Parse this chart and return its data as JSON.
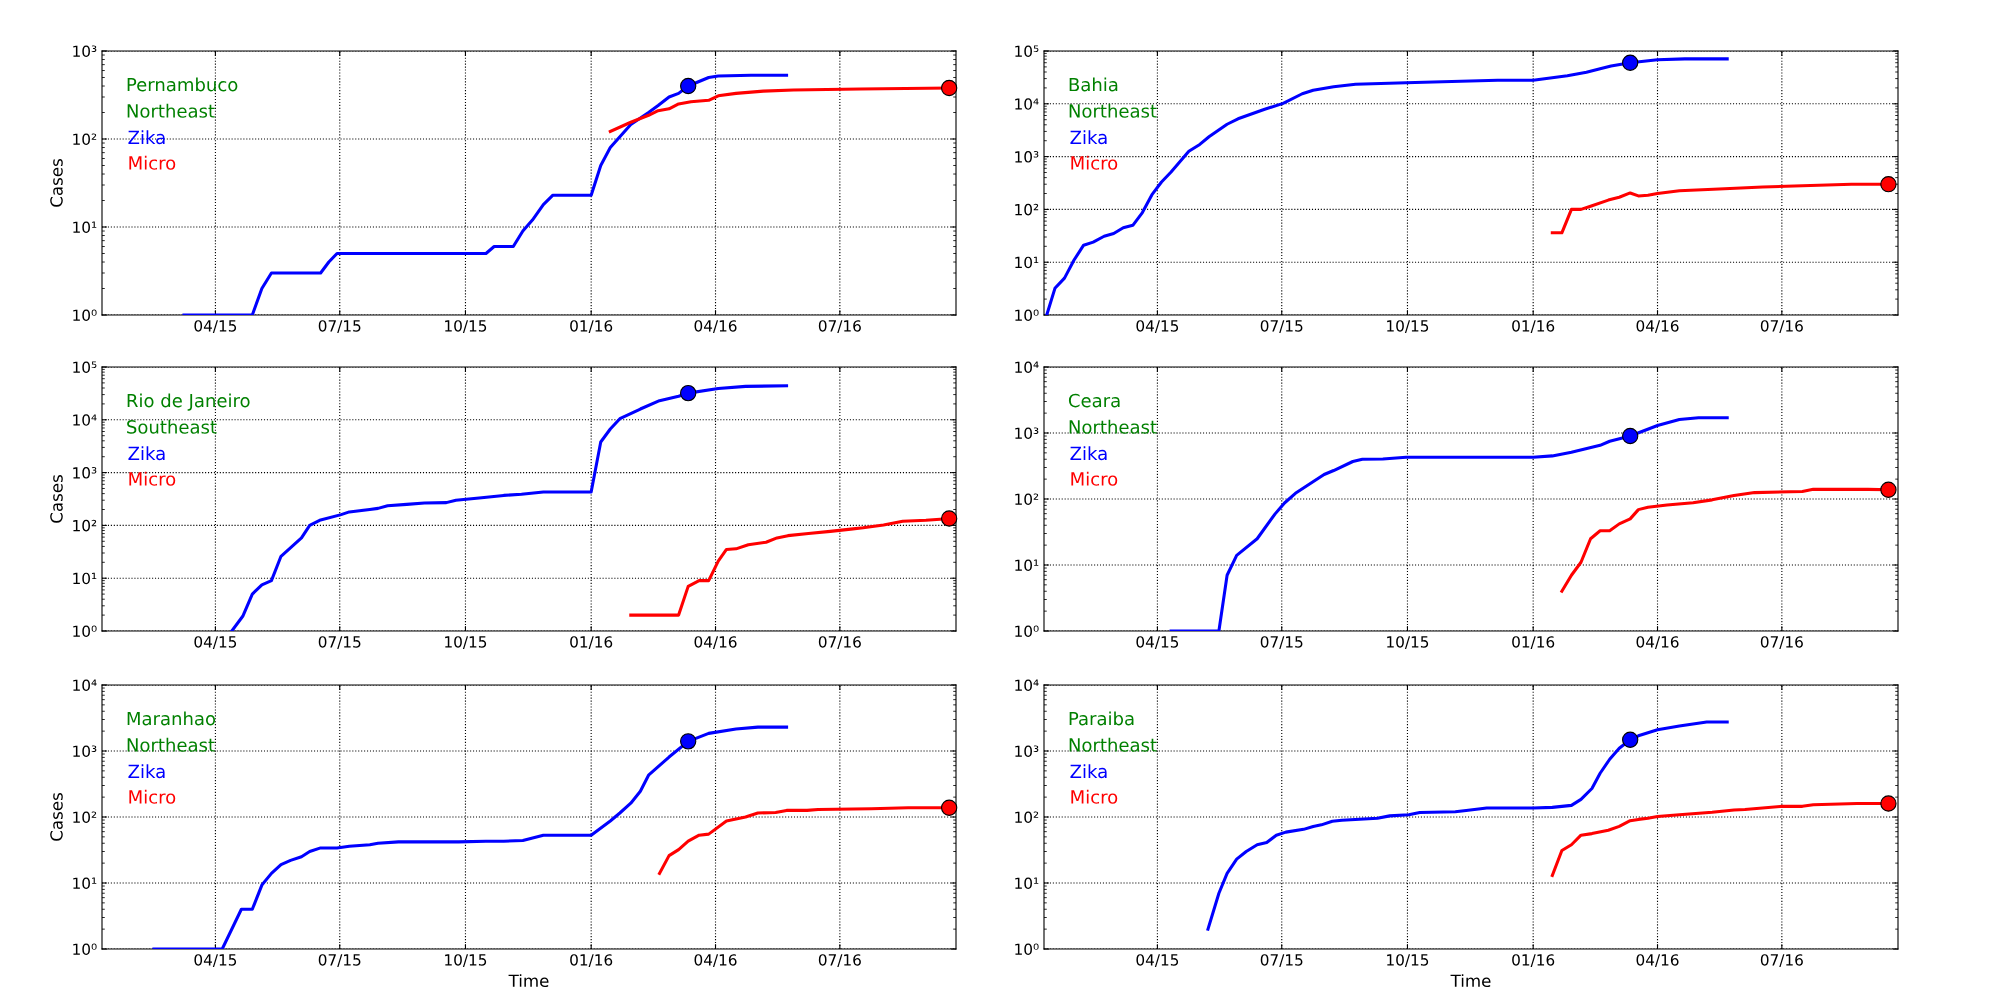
{
  "chart_data": [
    {
      "type": "line",
      "title": "Pernambuco",
      "subtitle": "Northeast",
      "ylabel": "Cases",
      "log": true,
      "grid": true,
      "legend": "top left",
      "xlim": [
        "2015-01-08",
        "2016-09-24"
      ],
      "xticks": [
        {
          "value": "2015-04-01",
          "label": "04/15"
        },
        {
          "value": "2015-07-01",
          "label": "07/15"
        },
        {
          "value": "2015-10-01",
          "label": "10/15"
        },
        {
          "value": "2016-01-01",
          "label": "01/16"
        },
        {
          "value": "2016-04-01",
          "label": "04/16"
        },
        {
          "value": "2016-07-01",
          "label": "07/16"
        }
      ],
      "ylim": [
        1,
        1000
      ],
      "yticks": [
        {
          "value": 1,
          "label": "10⁰"
        },
        {
          "value": 10,
          "label": "10¹"
        },
        {
          "value": 100,
          "label": "10²"
        },
        {
          "value": 1000,
          "label": "10³"
        }
      ],
      "series": [
        {
          "name": "Zika",
          "color": "#0000ff",
          "x": [
            "2015-03-09",
            "2015-04-28",
            "2015-05-05",
            "2015-05-12",
            "2015-06-17",
            "2015-06-23",
            "2015-06-29",
            "2015-10-16",
            "2015-10-22",
            "2015-11-05",
            "2015-11-12",
            "2015-11-19",
            "2015-11-27",
            "2015-12-04",
            "2016-01-01",
            "2016-01-08",
            "2016-01-15",
            "2016-01-22",
            "2016-01-30",
            "2016-02-12",
            "2016-02-19",
            "2016-02-27",
            "2016-03-05",
            "2016-03-12",
            "2016-03-27",
            "2016-04-03",
            "2016-04-27",
            "2016-05-23"
          ],
          "values": [
            1,
            1,
            2,
            3,
            3,
            4,
            5,
            5,
            6,
            6,
            9,
            12,
            18,
            23,
            23,
            50,
            80,
            106,
            146,
            200,
            240,
            300,
            330,
            400,
            500,
            520,
            530,
            530
          ]
        },
        {
          "name": "Micro",
          "color": "#ff0000",
          "x": [
            "2016-01-15",
            "2016-01-30",
            "2016-02-12",
            "2016-02-19",
            "2016-02-27",
            "2016-03-05",
            "2016-03-14",
            "2016-03-27",
            "2016-04-03",
            "2016-04-16",
            "2016-05-06",
            "2016-05-28",
            "2016-07-16",
            "2016-09-19"
          ],
          "values": [
            122,
            155,
            186,
            210,
            220,
            250,
            265,
            275,
            310,
            330,
            350,
            360,
            370,
            380
          ]
        },
        {
          "type": "scatter",
          "marker": "circle",
          "color": "#0000ff",
          "x": [
            "2016-03-12"
          ],
          "values": [
            400
          ]
        },
        {
          "type": "scatter",
          "marker": "circle",
          "color": "#ff0000",
          "x": [
            "2016-09-19"
          ],
          "values": [
            380
          ]
        }
      ]
    },
    {
      "type": "line",
      "title": "Bahia",
      "subtitle": "Northeast",
      "log": true,
      "grid": true,
      "legend": "top left",
      "xlim": [
        "2015-01-08",
        "2016-09-24"
      ],
      "xticks": [
        {
          "value": "2015-04-01",
          "label": "04/15"
        },
        {
          "value": "2015-07-01",
          "label": "07/15"
        },
        {
          "value": "2015-10-01",
          "label": "10/15"
        },
        {
          "value": "2016-01-01",
          "label": "01/16"
        },
        {
          "value": "2016-04-01",
          "label": "04/16"
        },
        {
          "value": "2016-07-01",
          "label": "07/16"
        }
      ],
      "ylim": [
        1,
        100000
      ],
      "yticks": [
        {
          "value": 1,
          "label": "10⁰"
        },
        {
          "value": 10,
          "label": "10¹"
        },
        {
          "value": 100,
          "label": "10²"
        },
        {
          "value": 1000,
          "label": "10³"
        },
        {
          "value": 10000,
          "label": "10⁴"
        },
        {
          "value": 100000,
          "label": "10⁵"
        }
      ],
      "series": [
        {
          "name": "Zika",
          "color": "#0000ff",
          "x": [
            "2015-01-10",
            "2015-01-16",
            "2015-01-23",
            "2015-01-30",
            "2015-02-06",
            "2015-02-13",
            "2015-02-21",
            "2015-02-28",
            "2015-03-07",
            "2015-03-14",
            "2015-03-21",
            "2015-03-28",
            "2015-04-04",
            "2015-04-11",
            "2015-04-24",
            "2015-05-02",
            "2015-05-09",
            "2015-05-22",
            "2015-05-30",
            "2015-06-18",
            "2015-07-02",
            "2015-07-16",
            "2015-07-24",
            "2015-08-08",
            "2015-08-24",
            "2015-09-30",
            "2015-12-06",
            "2016-01-01",
            "2016-01-26",
            "2016-02-09",
            "2016-02-19",
            "2016-02-27",
            "2016-03-12",
            "2016-04-01",
            "2016-04-21",
            "2016-05-22"
          ],
          "values": [
            1,
            3.2,
            5,
            11,
            21,
            24,
            31,
            35,
            45,
            50,
            87,
            190,
            330,
            510,
            1260,
            1700,
            2400,
            4100,
            5200,
            7800,
            10200,
            15500,
            18000,
            21000,
            23500,
            25000,
            28000,
            28000,
            34000,
            39500,
            46000,
            52000,
            60000,
            68000,
            71000,
            71000
          ]
        },
        {
          "name": "Micro",
          "color": "#ff0000",
          "x": [
            "2016-01-15",
            "2016-01-22",
            "2016-01-29",
            "2016-02-05",
            "2016-02-12",
            "2016-02-25",
            "2016-03-04",
            "2016-03-12",
            "2016-03-18",
            "2016-03-25",
            "2016-04-01",
            "2016-04-17",
            "2016-05-12",
            "2016-06-17",
            "2016-07-16",
            "2016-08-21",
            "2016-09-17"
          ],
          "values": [
            36,
            36,
            100,
            100,
            115,
            150,
            170,
            205,
            180,
            185,
            200,
            225,
            240,
            265,
            280,
            300,
            300
          ]
        },
        {
          "type": "scatter",
          "marker": "circle",
          "color": "#0000ff",
          "x": [
            "2016-03-12"
          ],
          "values": [
            60000
          ]
        },
        {
          "type": "scatter",
          "marker": "circle",
          "color": "#ff0000",
          "x": [
            "2016-09-17"
          ],
          "values": [
            300
          ]
        }
      ]
    },
    {
      "type": "line",
      "title": "Rio de Janeiro",
      "subtitle": "Southeast",
      "ylabel": "Cases",
      "log": true,
      "grid": true,
      "legend": "top left",
      "xlim": [
        "2015-01-08",
        "2016-09-24"
      ],
      "xticks": [
        {
          "value": "2015-04-01",
          "label": "04/15"
        },
        {
          "value": "2015-07-01",
          "label": "07/15"
        },
        {
          "value": "2015-10-01",
          "label": "10/15"
        },
        {
          "value": "2016-01-01",
          "label": "01/16"
        },
        {
          "value": "2016-04-01",
          "label": "04/16"
        },
        {
          "value": "2016-07-01",
          "label": "07/16"
        }
      ],
      "ylim": [
        1,
        100000
      ],
      "yticks": [
        {
          "value": 1,
          "label": "10⁰"
        },
        {
          "value": 10,
          "label": "10¹"
        },
        {
          "value": 100,
          "label": "10²"
        },
        {
          "value": 1000,
          "label": "10³"
        },
        {
          "value": 10000,
          "label": "10⁴"
        },
        {
          "value": 100000,
          "label": "10⁵"
        }
      ],
      "series": [
        {
          "name": "Zika",
          "color": "#0000ff",
          "x": [
            "2015-04-13",
            "2015-04-21",
            "2015-04-28",
            "2015-05-05",
            "2015-05-12",
            "2015-05-19",
            "2015-06-03",
            "2015-06-09",
            "2015-06-17",
            "2015-07-02",
            "2015-07-08",
            "2015-07-23",
            "2015-07-29",
            "2015-08-05",
            "2015-08-19",
            "2015-09-01",
            "2015-09-17",
            "2015-09-24",
            "2015-10-11",
            "2015-10-29",
            "2015-11-11",
            "2015-11-27",
            "2016-01-01",
            "2016-01-08",
            "2016-01-15",
            "2016-01-22",
            "2016-02-06",
            "2016-02-20",
            "2016-03-05",
            "2016-03-12",
            "2016-04-03",
            "2016-04-23",
            "2016-05-23"
          ],
          "values": [
            1,
            1.9,
            5,
            7.5,
            9,
            26,
            58,
            100,
            127,
            160,
            180,
            200,
            210,
            235,
            250,
            265,
            270,
            300,
            330,
            370,
            390,
            430,
            430,
            3800,
            6700,
            10500,
            16000,
            23000,
            28000,
            32000,
            39000,
            43000,
            44000
          ]
        },
        {
          "name": "Micro",
          "color": "#ff0000",
          "x": [
            "2016-01-30",
            "2016-03-05",
            "2016-03-12",
            "2016-03-20",
            "2016-03-27",
            "2016-04-03",
            "2016-04-09",
            "2016-04-16",
            "2016-04-25",
            "2016-05-08",
            "2016-05-16",
            "2016-05-24",
            "2016-06-08",
            "2016-06-24",
            "2016-07-09",
            "2016-07-18",
            "2016-08-02",
            "2016-08-16",
            "2016-09-02",
            "2016-09-19"
          ],
          "values": [
            2,
            2,
            7,
            9,
            9,
            21,
            35,
            36,
            43,
            48,
            58,
            64,
            70,
            77,
            85,
            90,
            102,
            120,
            125,
            135
          ]
        },
        {
          "type": "scatter",
          "marker": "circle",
          "color": "#0000ff",
          "x": [
            "2016-03-12"
          ],
          "values": [
            32000
          ]
        },
        {
          "type": "scatter",
          "marker": "circle",
          "color": "#ff0000",
          "x": [
            "2016-09-19"
          ],
          "values": [
            135
          ]
        }
      ]
    },
    {
      "type": "line",
      "title": "Ceara",
      "subtitle": "Northeast",
      "log": true,
      "grid": true,
      "legend": "top left",
      "xlim": [
        "2015-01-08",
        "2016-09-24"
      ],
      "xticks": [
        {
          "value": "2015-04-01",
          "label": "04/15"
        },
        {
          "value": "2015-07-01",
          "label": "07/15"
        },
        {
          "value": "2015-10-01",
          "label": "10/15"
        },
        {
          "value": "2016-01-01",
          "label": "01/16"
        },
        {
          "value": "2016-04-01",
          "label": "04/16"
        },
        {
          "value": "2016-07-01",
          "label": "07/16"
        }
      ],
      "ylim": [
        1,
        10000
      ],
      "yticks": [
        {
          "value": 1,
          "label": "10⁰"
        },
        {
          "value": 10,
          "label": "10¹"
        },
        {
          "value": 100,
          "label": "10²"
        },
        {
          "value": 1000,
          "label": "10³"
        },
        {
          "value": 10000,
          "label": "10⁴"
        }
      ],
      "series": [
        {
          "name": "Zika",
          "color": "#0000ff",
          "x": [
            "2015-04-11",
            "2015-05-16",
            "2015-05-22",
            "2015-05-29",
            "2015-06-13",
            "2015-06-26",
            "2015-07-03",
            "2015-07-11",
            "2015-08-01",
            "2015-08-08",
            "2015-08-22",
            "2015-08-29",
            "2015-09-13",
            "2015-09-30",
            "2016-01-01",
            "2016-01-15",
            "2016-01-29",
            "2016-02-19",
            "2016-02-26",
            "2016-03-12",
            "2016-04-01",
            "2016-04-17",
            "2016-05-01",
            "2016-05-22"
          ],
          "values": [
            1,
            1,
            7,
            14,
            25,
            59,
            87,
            122,
            235,
            270,
            370,
            400,
            405,
            430,
            430,
            450,
            510,
            650,
            750,
            900,
            1300,
            1600,
            1700,
            1700
          ]
        },
        {
          "name": "Micro",
          "color": "#ff0000",
          "x": [
            "2016-01-22",
            "2016-01-29",
            "2016-02-05",
            "2016-02-12",
            "2016-02-19",
            "2016-02-26",
            "2016-03-04",
            "2016-03-12",
            "2016-03-18",
            "2016-03-25",
            "2016-04-08",
            "2016-04-27",
            "2016-05-11",
            "2016-05-27",
            "2016-06-11",
            "2016-07-16",
            "2016-07-24",
            "2016-09-02",
            "2016-09-17"
          ],
          "values": [
            4,
            7,
            11,
            25,
            33,
            33,
            42,
            50,
            69,
            75,
            81,
            88,
            97,
            113,
            125,
            130,
            140,
            140,
            138
          ]
        },
        {
          "type": "scatter",
          "marker": "circle",
          "color": "#0000ff",
          "x": [
            "2016-03-12"
          ],
          "values": [
            900
          ]
        },
        {
          "type": "scatter",
          "marker": "circle",
          "color": "#ff0000",
          "x": [
            "2016-09-17"
          ],
          "values": [
            138
          ]
        }
      ]
    },
    {
      "type": "line",
      "title": "Maranhao",
      "subtitle": "Northeast",
      "xlabel": "Time",
      "ylabel": "Cases",
      "log": true,
      "grid": true,
      "legend": "top left",
      "xlim": [
        "2015-01-08",
        "2016-09-24"
      ],
      "xticks": [
        {
          "value": "2015-04-01",
          "label": "04/15"
        },
        {
          "value": "2015-07-01",
          "label": "07/15"
        },
        {
          "value": "2015-10-01",
          "label": "10/15"
        },
        {
          "value": "2016-01-01",
          "label": "01/16"
        },
        {
          "value": "2016-04-01",
          "label": "04/16"
        },
        {
          "value": "2016-07-01",
          "label": "07/16"
        }
      ],
      "ylim": [
        1,
        10000
      ],
      "yticks": [
        {
          "value": 1,
          "label": "10⁰"
        },
        {
          "value": 10,
          "label": "10¹"
        },
        {
          "value": 100,
          "label": "10²"
        },
        {
          "value": 1000,
          "label": "10³"
        },
        {
          "value": 10000,
          "label": "10⁴"
        }
      ],
      "series": [
        {
          "name": "Zika",
          "color": "#0000ff",
          "x": [
            "2015-02-15",
            "2015-04-06",
            "2015-04-20",
            "2015-04-28",
            "2015-05-05",
            "2015-05-12",
            "2015-05-19",
            "2015-05-26",
            "2015-06-03",
            "2015-06-09",
            "2015-06-17",
            "2015-06-29",
            "2015-07-08",
            "2015-07-23",
            "2015-07-29",
            "2015-08-13",
            "2015-09-26",
            "2015-10-16",
            "2015-10-29",
            "2015-11-12",
            "2015-11-27",
            "2016-01-01",
            "2016-01-15",
            "2016-01-22",
            "2016-01-30",
            "2016-02-06",
            "2016-02-12",
            "2016-02-27",
            "2016-03-12",
            "2016-03-27",
            "2016-04-16",
            "2016-05-02",
            "2016-05-23"
          ],
          "values": [
            1,
            1,
            4,
            4,
            9.3,
            14,
            19,
            22,
            25,
            30,
            34,
            34,
            36,
            38,
            40,
            42,
            42,
            43,
            43,
            44,
            53,
            53,
            87,
            115,
            162,
            245,
            430,
            810,
            1400,
            1850,
            2150,
            2300,
            2300
          ]
        },
        {
          "name": "Micro",
          "color": "#ff0000",
          "x": [
            "2016-02-20",
            "2016-02-27",
            "2016-03-05",
            "2016-03-12",
            "2016-03-20",
            "2016-03-27",
            "2016-04-09",
            "2016-04-23",
            "2016-05-02",
            "2016-05-15",
            "2016-05-23",
            "2016-06-07",
            "2016-06-15",
            "2016-07-24",
            "2016-08-20",
            "2016-09-19"
          ],
          "values": [
            14,
            26,
            32,
            43,
            53,
            55,
            87,
            100,
            115,
            117,
            126,
            126,
            130,
            133,
            138,
            138
          ]
        },
        {
          "type": "scatter",
          "marker": "circle",
          "color": "#0000ff",
          "x": [
            "2016-03-12"
          ],
          "values": [
            1400
          ]
        },
        {
          "type": "scatter",
          "marker": "circle",
          "color": "#ff0000",
          "x": [
            "2016-09-19"
          ],
          "values": [
            138
          ]
        }
      ]
    },
    {
      "type": "line",
      "title": "Paraiba",
      "subtitle": "Northeast",
      "xlabel": "Time",
      "log": true,
      "grid": true,
      "legend": "top left",
      "xlim": [
        "2015-01-08",
        "2016-09-24"
      ],
      "xticks": [
        {
          "value": "2015-04-01",
          "label": "04/15"
        },
        {
          "value": "2015-07-01",
          "label": "07/15"
        },
        {
          "value": "2015-10-01",
          "label": "10/15"
        },
        {
          "value": "2016-01-01",
          "label": "01/16"
        },
        {
          "value": "2016-04-01",
          "label": "04/16"
        },
        {
          "value": "2016-07-01",
          "label": "07/16"
        }
      ],
      "ylim": [
        1,
        10000
      ],
      "yticks": [
        {
          "value": 1,
          "label": "10⁰"
        },
        {
          "value": 10,
          "label": "10¹"
        },
        {
          "value": 100,
          "label": "10²"
        },
        {
          "value": 1000,
          "label": "10³"
        },
        {
          "value": 10000,
          "label": "10⁴"
        }
      ],
      "series": [
        {
          "name": "Zika",
          "color": "#0000ff",
          "x": [
            "2015-05-08",
            "2015-05-16",
            "2015-05-22",
            "2015-05-29",
            "2015-06-05",
            "2015-06-13",
            "2015-06-20",
            "2015-06-27",
            "2015-07-04",
            "2015-07-17",
            "2015-07-24",
            "2015-07-30",
            "2015-08-07",
            "2015-08-14",
            "2015-09-09",
            "2015-09-18",
            "2015-10-02",
            "2015-10-10",
            "2015-11-05",
            "2015-11-13",
            "2015-11-28",
            "2016-01-01",
            "2016-01-15",
            "2016-01-29",
            "2016-02-05",
            "2016-02-13",
            "2016-02-19",
            "2016-02-26",
            "2016-03-04",
            "2016-03-12",
            "2016-03-18",
            "2016-04-01",
            "2016-04-17",
            "2016-05-07",
            "2016-05-22"
          ],
          "values": [
            2,
            7,
            14,
            23,
            30,
            38,
            41,
            53,
            59,
            65,
            72,
            76,
            86,
            89,
            96,
            104,
            108,
            117,
            120,
            125,
            137,
            137,
            140,
            150,
            185,
            270,
            460,
            750,
            1100,
            1480,
            1700,
            2100,
            2400,
            2750,
            2750
          ]
        },
        {
          "name": "Micro",
          "color": "#ff0000",
          "x": [
            "2016-01-15",
            "2016-01-22",
            "2016-01-29",
            "2016-02-05",
            "2016-02-13",
            "2016-02-25",
            "2016-03-04",
            "2016-03-12",
            "2016-03-18",
            "2016-03-25",
            "2016-04-01",
            "2016-04-17",
            "2016-05-11",
            "2016-05-27",
            "2016-06-04",
            "2016-07-01",
            "2016-07-16",
            "2016-07-24",
            "2016-08-25",
            "2016-09-17"
          ],
          "values": [
            13,
            31,
            38,
            53,
            56,
            63,
            72,
            88,
            92,
            96,
            102,
            108,
            118,
            128,
            130,
            145,
            145,
            153,
            160,
            160
          ]
        },
        {
          "type": "scatter",
          "marker": "circle",
          "color": "#0000ff",
          "x": [
            "2016-03-12"
          ],
          "values": [
            1480
          ]
        },
        {
          "type": "scatter",
          "marker": "circle",
          "color": "#ff0000",
          "x": [
            "2016-09-17"
          ],
          "values": [
            160
          ]
        }
      ]
    }
  ]
}
